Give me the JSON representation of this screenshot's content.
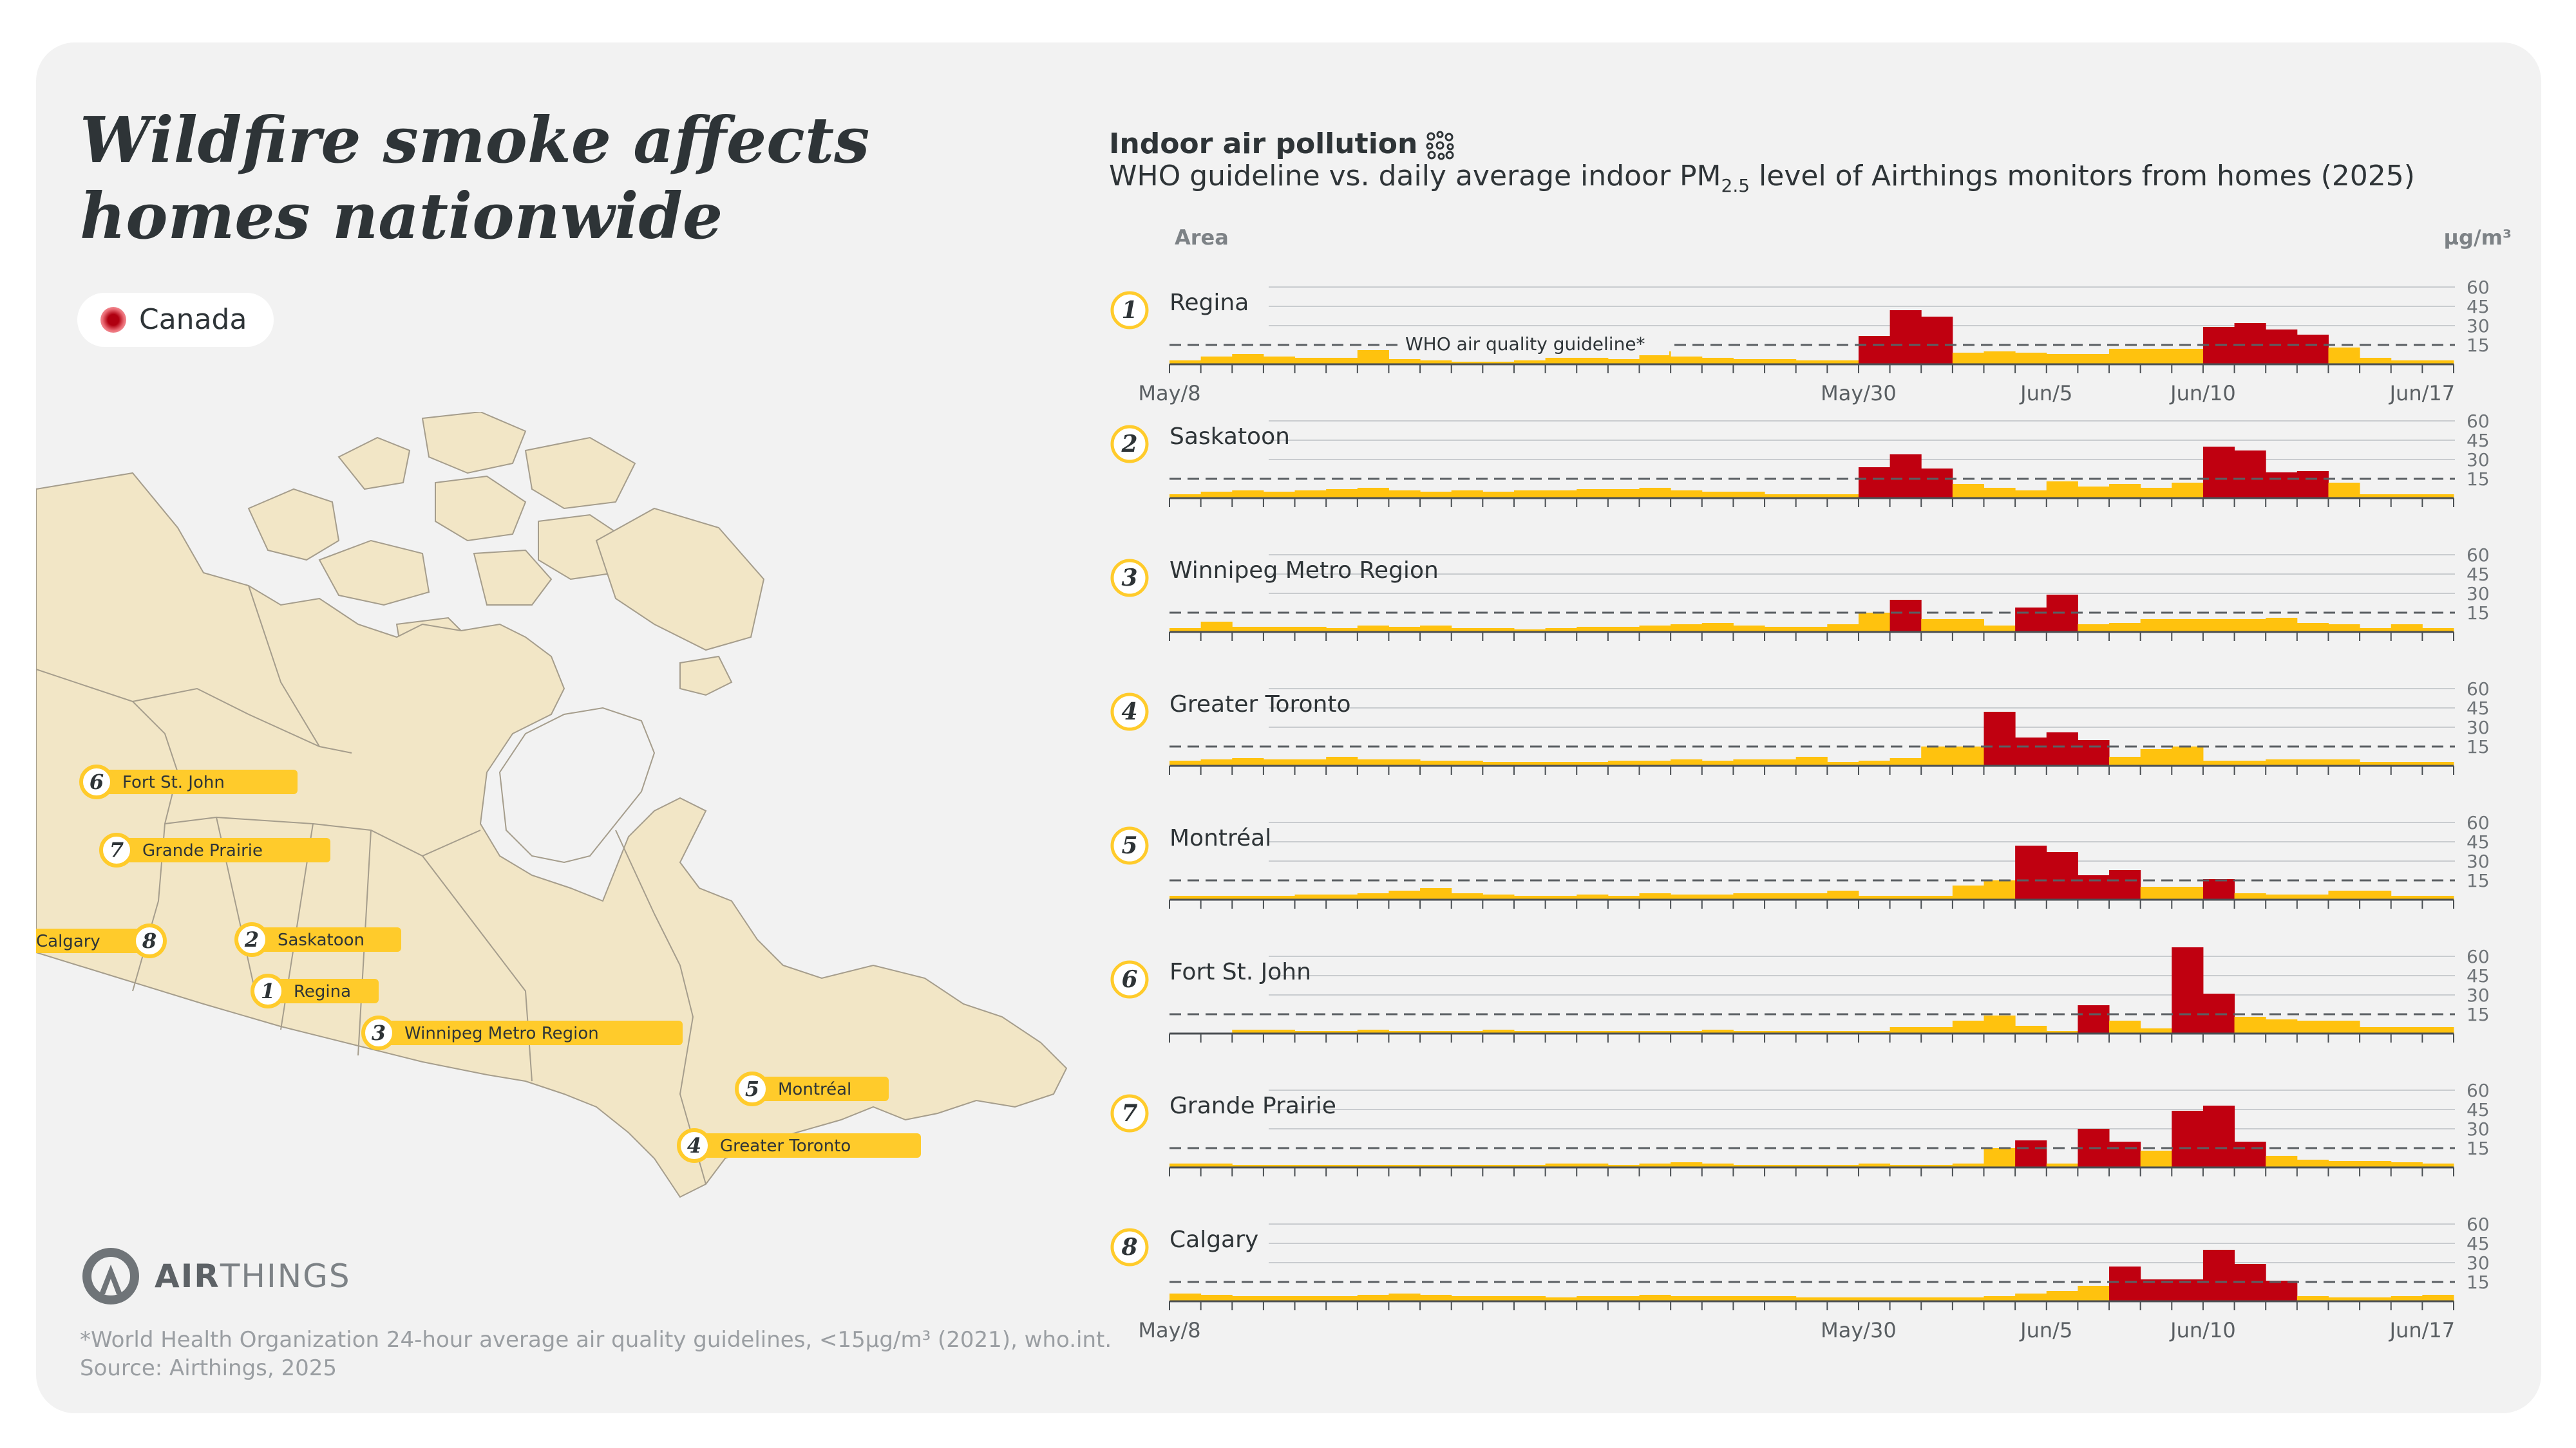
{
  "headline": {
    "line1": "Wildfire smoke affects",
    "line2": "homes nationwide"
  },
  "legend": {
    "label": "Canada",
    "color": "#c00010"
  },
  "brand": {
    "name_bold": "AIR",
    "name_rest": "THINGS"
  },
  "footnote": {
    "line1": "*World Health Organization 24-hour average air quality guidelines, <15µg/m³ (2021), who.int.",
    "line2": "Source: Airthings, 2025"
  },
  "header": {
    "title": "Indoor air pollution",
    "subtitle_a": "WHO guideline vs. daily average indoor PM",
    "subtitle_sub": "2.5",
    "subtitle_b": " level of Airthings monitors from homes (2025)"
  },
  "colors": {
    "below": "#ffc20e",
    "above": "#c00010",
    "badge": "#ffcb2b",
    "map_land": "#f2e6c6",
    "map_border": "#a59d8c"
  },
  "map_markers": [
    {
      "num": "1",
      "name": "Regina"
    },
    {
      "num": "2",
      "name": "Saskatoon"
    },
    {
      "num": "3",
      "name": "Winnipeg Metro Region"
    },
    {
      "num": "4",
      "name": "Greater Toronto"
    },
    {
      "num": "5",
      "name": "Montréal"
    },
    {
      "num": "6",
      "name": "Fort St. John"
    },
    {
      "num": "7",
      "name": "Grande Prairie"
    },
    {
      "num": "8",
      "name": "Calgary"
    }
  ],
  "chart_data": {
    "type": "bar",
    "title": "Indoor air pollution",
    "subtitle": "WHO guideline vs. daily average indoor PM2.5 level of Airthings monitors from homes (2025)",
    "area_label": "Area",
    "unit": "µg/m³",
    "guideline_value": 15,
    "guideline_label": "WHO air quality guideline*",
    "ylim": [
      0,
      60
    ],
    "yticks": [
      15,
      30,
      45,
      60
    ],
    "date_start": "May/8",
    "date_end": "Jun/17",
    "xtick_labels": [
      {
        "label": "May/8",
        "day": 0
      },
      {
        "label": "May/30",
        "day": 22
      },
      {
        "label": "Jun/5",
        "day": 28
      },
      {
        "label": "Jun/10",
        "day": 33
      },
      {
        "label": "Jun/17",
        "day": 40
      }
    ],
    "series": [
      {
        "num": "1",
        "name": "Regina",
        "values": [
          3,
          6,
          8,
          6,
          5,
          5,
          11,
          4,
          3,
          2,
          2,
          3,
          5,
          5,
          4,
          10,
          6,
          5,
          4,
          4,
          3,
          3,
          22,
          42,
          37,
          9,
          10,
          9,
          8,
          8,
          12,
          12,
          12,
          29,
          32,
          27,
          23,
          13,
          5,
          3,
          3
        ]
      },
      {
        "num": "2",
        "name": "Saskatoon",
        "values": [
          3,
          5,
          6,
          5,
          6,
          7,
          8,
          6,
          5,
          6,
          5,
          6,
          6,
          7,
          7,
          8,
          6,
          5,
          5,
          3,
          3,
          3,
          24,
          34,
          23,
          11,
          8,
          6,
          13,
          9,
          11,
          8,
          12,
          40,
          37,
          20,
          21,
          12,
          3,
          3,
          3
        ]
      },
      {
        "num": "3",
        "name": "Winnipeg Metro Region",
        "values": [
          3,
          8,
          4,
          4,
          4,
          3,
          5,
          4,
          5,
          3,
          3,
          2,
          3,
          4,
          4,
          5,
          6,
          7,
          5,
          4,
          4,
          6,
          15,
          25,
          10,
          10,
          5,
          19,
          29,
          6,
          7,
          10,
          10,
          10,
          10,
          11,
          7,
          6,
          3,
          6,
          3
        ]
      },
      {
        "num": "4",
        "name": "Greater Toronto",
        "values": [
          4,
          5,
          6,
          5,
          5,
          7,
          5,
          5,
          4,
          4,
          3,
          3,
          3,
          3,
          4,
          4,
          5,
          4,
          5,
          5,
          7,
          3,
          4,
          6,
          15,
          15,
          42,
          22,
          26,
          20,
          7,
          13,
          15,
          4,
          4,
          5,
          5,
          5,
          3,
          3,
          3
        ]
      },
      {
        "num": "5",
        "name": "Montréal",
        "values": [
          3,
          3,
          3,
          3,
          4,
          4,
          5,
          7,
          9,
          5,
          4,
          3,
          3,
          4,
          3,
          5,
          4,
          4,
          5,
          5,
          5,
          7,
          3,
          3,
          3,
          11,
          15,
          42,
          37,
          19,
          23,
          10,
          10,
          16,
          5,
          4,
          4,
          7,
          7,
          3,
          3
        ]
      },
      {
        "num": "6",
        "name": "Fort St. John",
        "values": [
          0,
          0,
          3,
          3,
          2,
          2,
          3,
          2,
          2,
          2,
          3,
          2,
          2,
          2,
          2,
          2,
          2,
          3,
          2,
          2,
          2,
          2,
          2,
          5,
          5,
          10,
          14,
          6,
          2,
          22,
          10,
          4,
          67,
          31,
          13,
          11,
          10,
          10,
          5,
          5,
          5
        ]
      },
      {
        "num": "7",
        "name": "Grande Prairie",
        "values": [
          3,
          3,
          2,
          2,
          2,
          2,
          2,
          2,
          2,
          2,
          2,
          2,
          3,
          3,
          2,
          3,
          4,
          3,
          2,
          2,
          2,
          2,
          3,
          2,
          2,
          3,
          15,
          21,
          3,
          30,
          20,
          13,
          44,
          48,
          20,
          9,
          6,
          5,
          5,
          4,
          3
        ]
      },
      {
        "num": "8",
        "name": "Calgary",
        "values": [
          6,
          5,
          4,
          4,
          4,
          4,
          5,
          6,
          5,
          4,
          4,
          4,
          3,
          4,
          4,
          5,
          4,
          4,
          4,
          4,
          3,
          3,
          3,
          3,
          3,
          3,
          4,
          6,
          8,
          12,
          27,
          17,
          17,
          40,
          29,
          16,
          4,
          3,
          3,
          4,
          5
        ]
      }
    ]
  }
}
